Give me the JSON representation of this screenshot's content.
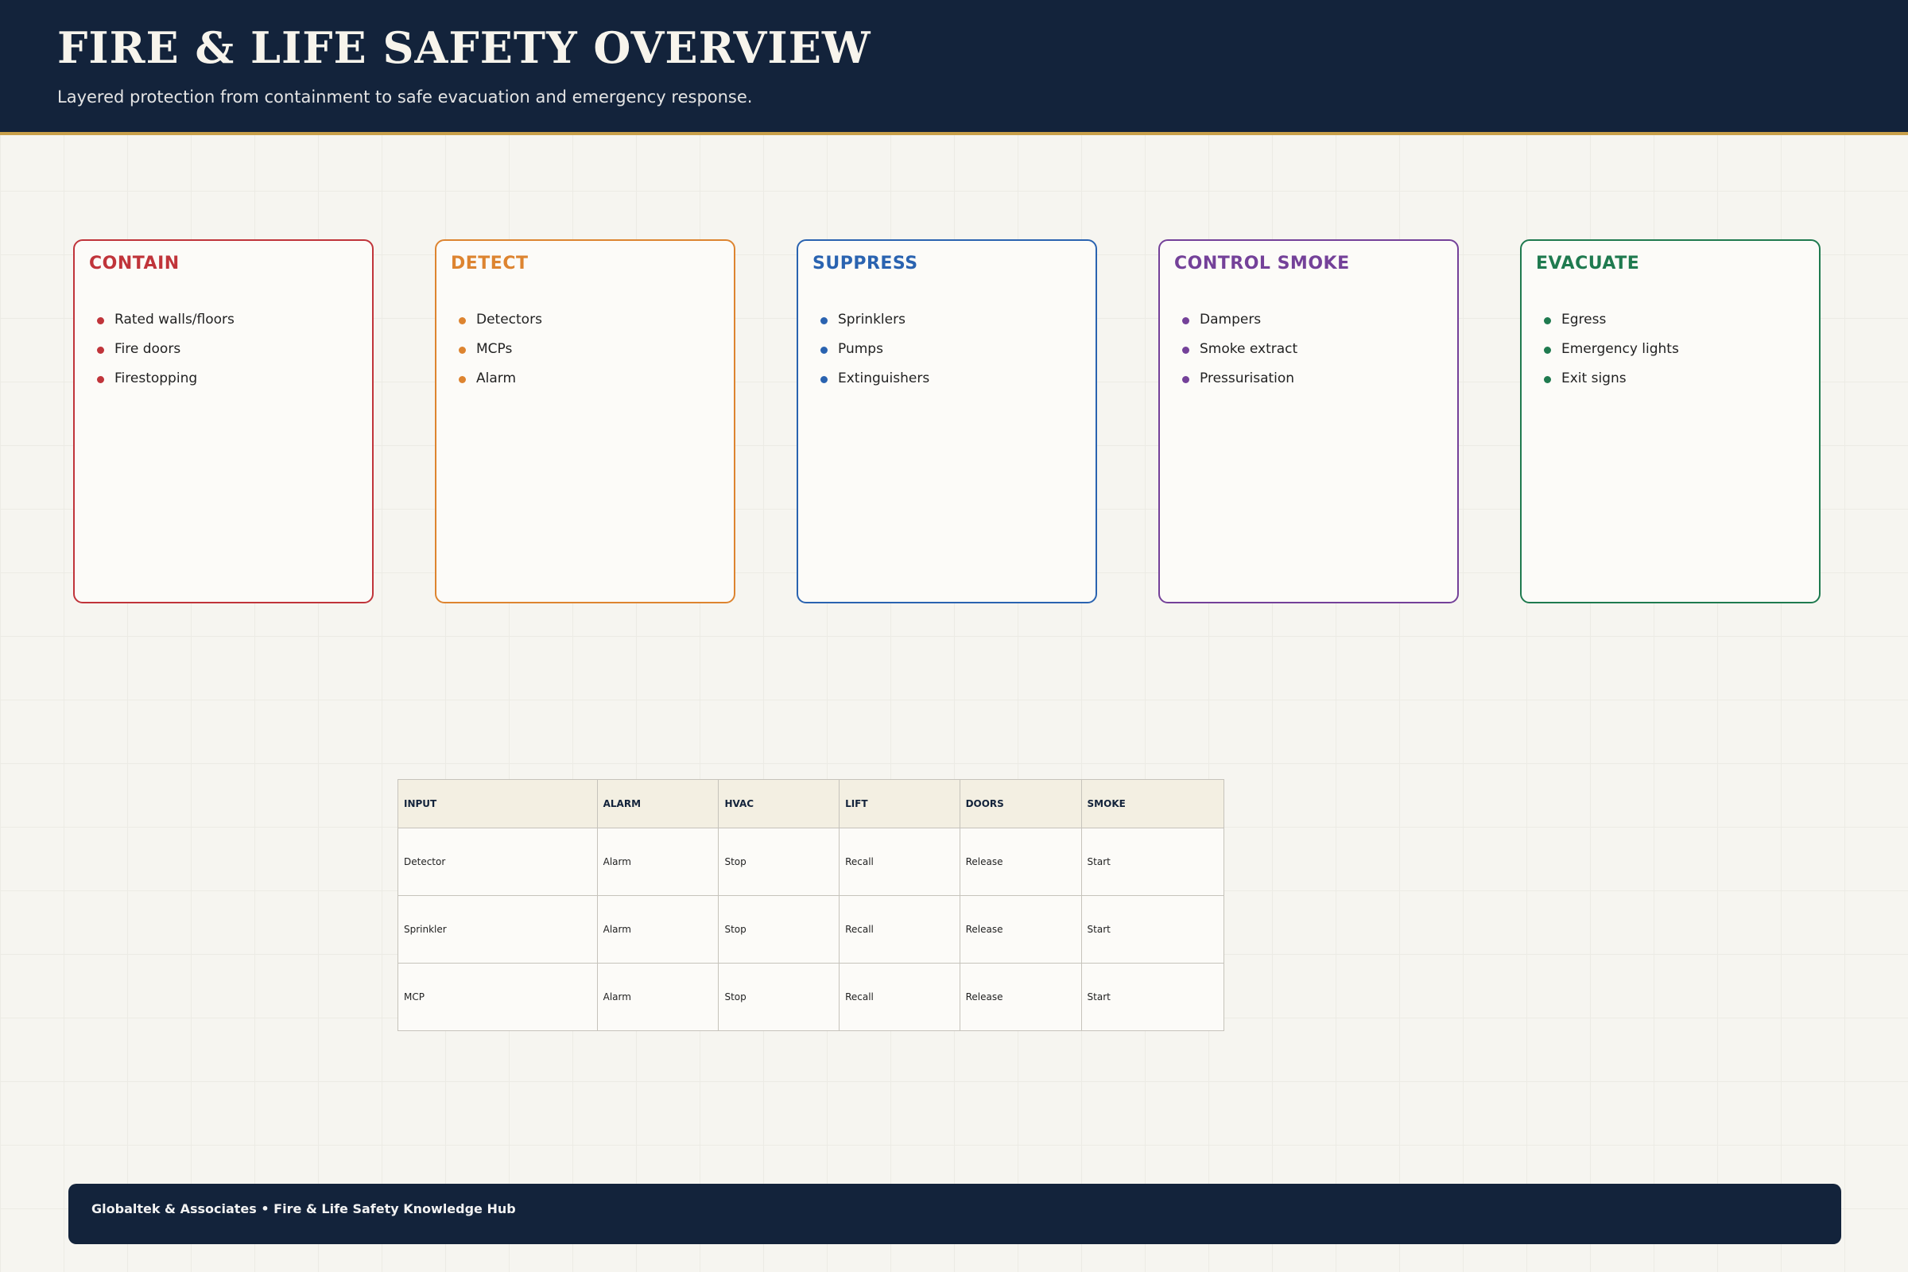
{
  "header": {
    "title": "FIRE & LIFE SAFETY OVERVIEW",
    "subtitle": "Layered protection from containment to safe evacuation and emergency response."
  },
  "cards": [
    {
      "title": "CONTAIN",
      "items": [
        "Rated walls/floors",
        "Fire doors",
        "Firestopping"
      ]
    },
    {
      "title": "DETECT",
      "items": [
        "Detectors",
        "MCPs",
        "Alarm"
      ]
    },
    {
      "title": "SUPPRESS",
      "items": [
        "Sprinklers",
        "Pumps",
        "Extinguishers"
      ]
    },
    {
      "title": "CONTROL SMOKE",
      "items": [
        "Dampers",
        "Smoke extract",
        "Pressurisation"
      ]
    },
    {
      "title": "EVACUATE",
      "items": [
        "Egress",
        "Emergency lights",
        "Exit signs"
      ]
    }
  ],
  "table": {
    "columns": [
      "INPUT",
      "ALARM",
      "HVAC",
      "LIFT",
      "DOORS",
      "SMOKE"
    ],
    "rows": [
      [
        "Detector",
        "Alarm",
        "Stop",
        "Recall",
        "Release",
        "Start"
      ],
      [
        "Sprinkler",
        "Alarm",
        "Stop",
        "Recall",
        "Release",
        "Start"
      ],
      [
        "MCP",
        "Alarm",
        "Stop",
        "Recall",
        "Release",
        "Start"
      ]
    ]
  },
  "footer": {
    "text": "Globaltek & Associates • Fire & Life Safety Knowledge Hub"
  }
}
